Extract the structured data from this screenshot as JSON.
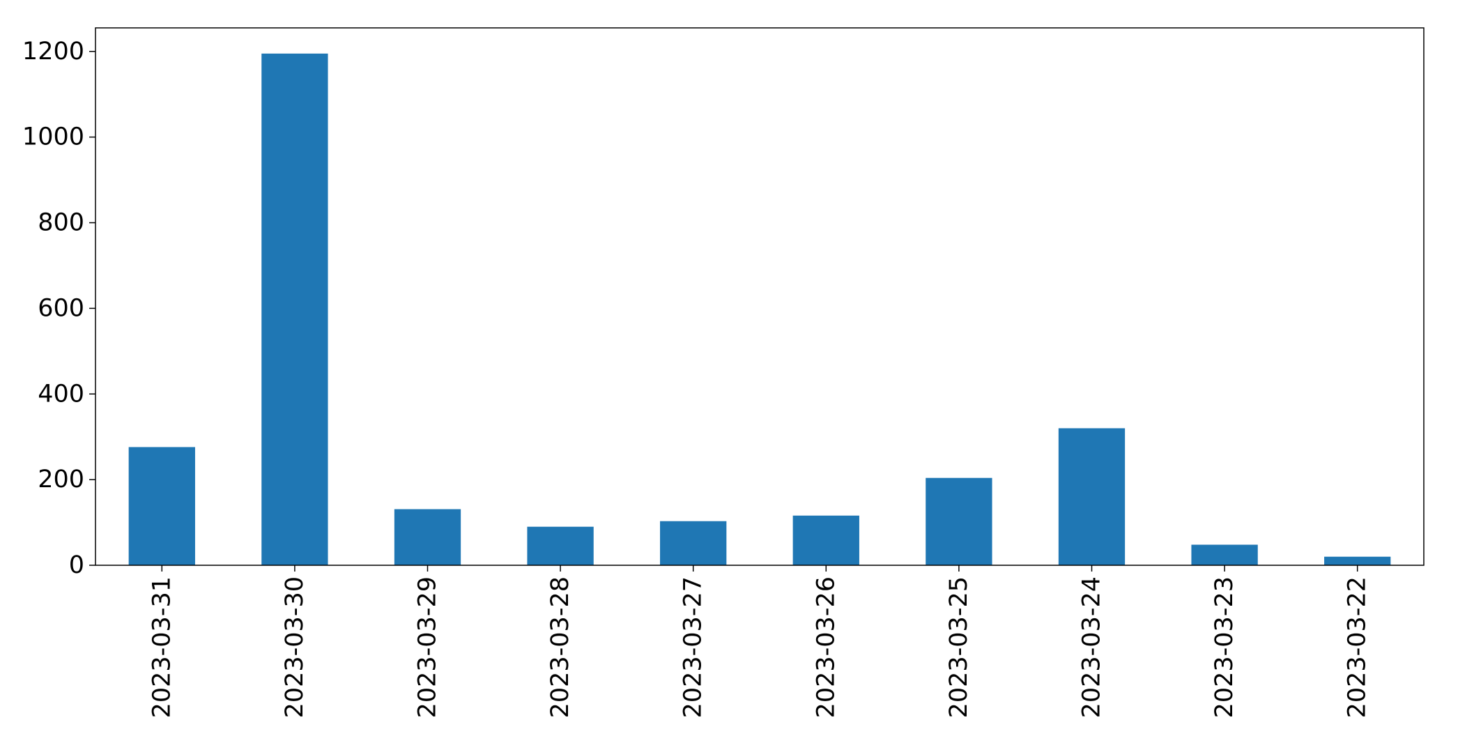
{
  "chart_data": {
    "type": "bar",
    "title": "",
    "xlabel": "",
    "ylabel": "",
    "categories": [
      "2023-03-31",
      "2023-03-30",
      "2023-03-29",
      "2023-03-28",
      "2023-03-27",
      "2023-03-26",
      "2023-03-25",
      "2023-03-24",
      "2023-03-23",
      "2023-03-22"
    ],
    "values": [
      276,
      1195,
      131,
      90,
      103,
      116,
      204,
      320,
      48,
      20
    ],
    "ylim": [
      0,
      1255
    ],
    "yticks": [
      0,
      200,
      400,
      600,
      800,
      1000,
      1200
    ],
    "bar_color": "#1f77b4",
    "grid": false,
    "legend": false
  }
}
